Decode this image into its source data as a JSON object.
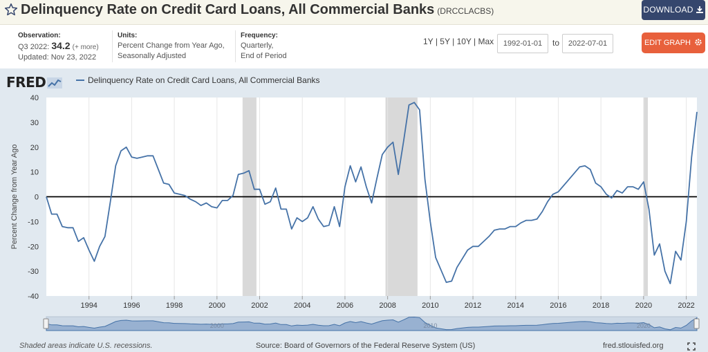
{
  "header": {
    "title": "Delinquency Rate on Credit Card Loans, All Commercial Banks",
    "series_code": "(DRCCLACBS)",
    "download_label": "DOWNLOAD",
    "icon_star": "star-outline-icon",
    "icon_download": "download-icon"
  },
  "meta": {
    "observation_label": "Observation:",
    "observation_period": "Q3 2022:",
    "observation_value": "34.2",
    "observation_more": "(+ more)",
    "updated": "Updated: Nov 23, 2022",
    "units_label": "Units:",
    "units_line1": "Percent Change from Year Ago,",
    "units_line2": "Seasonally Adjusted",
    "frequency_label": "Frequency:",
    "frequency_line1": "Quarterly,",
    "frequency_line2": "End of Period"
  },
  "controls": {
    "range_1y": "1Y",
    "range_5y": "5Y",
    "range_10y": "10Y",
    "range_max": "Max",
    "sep": "|",
    "start_date": "1992-01-01",
    "to_label": "to",
    "end_date": "2022-07-01",
    "edit_label": "EDIT GRAPH",
    "icon_gear": "gear-icon"
  },
  "brand": {
    "logo": "FRED",
    "icon_logo": "fred-chart-icon"
  },
  "footer": {
    "recession_note": "Shaded areas indicate U.S. recessions.",
    "source": "Source: Board of Governors of the Federal Reserve System (US)",
    "site": "fred.stlouisfed.org",
    "icon_fullscreen": "fullscreen-icon"
  },
  "colors": {
    "series": "#4572a7",
    "recession": "#d9d9d9",
    "plot_bg": "#ffffff",
    "chart_bg": "#e1e9f0",
    "download_bg": "#35466d",
    "edit_bg": "#e8603c"
  },
  "chart_data": {
    "type": "line",
    "title": "",
    "ylabel": "Percent Change from Year Ago",
    "xlabel": "",
    "ylim": [
      -40,
      40
    ],
    "xlim": [
      1992.0,
      2022.5
    ],
    "yticks": [
      40,
      30,
      20,
      10,
      0,
      -10,
      -20,
      -30,
      -40
    ],
    "xticks": [
      1994,
      1996,
      1998,
      2000,
      2002,
      2004,
      2006,
      2008,
      2010,
      2012,
      2014,
      2016,
      2018,
      2020,
      2022
    ],
    "zero_line": true,
    "legend": "top-left",
    "grid": "vertical",
    "recessions": [
      [
        2001.2,
        2001.85
      ],
      [
        2007.9,
        2009.4
      ],
      [
        2020.0,
        2020.2
      ]
    ],
    "navigator_labels": [
      "2000",
      "2010",
      "2020"
    ],
    "series": [
      {
        "name": "Delinquency Rate on Credit Card Loans, All Commercial Banks",
        "x": [
          1992.0,
          1992.25,
          1992.5,
          1992.75,
          1993.0,
          1993.25,
          1993.5,
          1993.75,
          1994.0,
          1994.25,
          1994.5,
          1994.75,
          1995.0,
          1995.25,
          1995.5,
          1995.75,
          1996.0,
          1996.25,
          1996.5,
          1996.75,
          1997.0,
          1997.25,
          1997.5,
          1997.75,
          1998.0,
          1998.25,
          1998.5,
          1998.75,
          1999.0,
          1999.25,
          1999.5,
          1999.75,
          2000.0,
          2000.25,
          2000.5,
          2000.75,
          2001.0,
          2001.25,
          2001.5,
          2001.75,
          2002.0,
          2002.25,
          2002.5,
          2002.75,
          2003.0,
          2003.25,
          2003.5,
          2003.75,
          2004.0,
          2004.25,
          2004.5,
          2004.75,
          2005.0,
          2005.25,
          2005.5,
          2005.75,
          2006.0,
          2006.25,
          2006.5,
          2006.75,
          2007.0,
          2007.25,
          2007.5,
          2007.75,
          2008.0,
          2008.25,
          2008.5,
          2008.75,
          2009.0,
          2009.25,
          2009.5,
          2009.75,
          2010.0,
          2010.25,
          2010.5,
          2010.75,
          2011.0,
          2011.25,
          2011.5,
          2011.75,
          2012.0,
          2012.25,
          2012.5,
          2012.75,
          2013.0,
          2013.25,
          2013.5,
          2013.75,
          2014.0,
          2014.25,
          2014.5,
          2014.75,
          2015.0,
          2015.25,
          2015.5,
          2015.75,
          2016.0,
          2016.25,
          2016.5,
          2016.75,
          2017.0,
          2017.25,
          2017.5,
          2017.75,
          2018.0,
          2018.25,
          2018.5,
          2018.75,
          2019.0,
          2019.25,
          2019.5,
          2019.75,
          2020.0,
          2020.25,
          2020.5,
          2020.75,
          2021.0,
          2021.25,
          2021.5,
          2021.75,
          2022.0,
          2022.25,
          2022.5
        ],
        "y": [
          0,
          -7,
          -7,
          -12,
          -12.5,
          -12.5,
          -18,
          -16.5,
          -21.5,
          -26,
          -20,
          -16,
          -2,
          12.5,
          18.5,
          20,
          16,
          15.5,
          16,
          16.5,
          16.5,
          11,
          5.5,
          5,
          1.5,
          1,
          0.5,
          -1,
          -2,
          -3.5,
          -2.5,
          -4,
          -4.5,
          -1.5,
          -1.5,
          0.5,
          9,
          9.5,
          10.5,
          3,
          3,
          -3,
          -2,
          3.5,
          -5,
          -5,
          -13,
          -8.5,
          -10,
          -8.5,
          -4,
          -9,
          -12,
          -11.5,
          -4,
          -12,
          4,
          12.5,
          6,
          12,
          4,
          -2.5,
          7.5,
          17,
          20,
          22,
          9,
          22.5,
          37,
          38,
          35,
          7,
          -10,
          -24.5,
          -29.5,
          -34.5,
          -34,
          -28.5,
          -25,
          -21.5,
          -20,
          -20,
          -18,
          -16,
          -13.5,
          -13,
          -13,
          -12,
          -12,
          -10.5,
          -9.5,
          -9.5,
          -9,
          -6,
          -2,
          1,
          2,
          4.5,
          7,
          9.5,
          12,
          12.5,
          11,
          5.5,
          4,
          1,
          -0.5,
          2.5,
          1.5,
          4,
          4,
          3,
          6,
          -5,
          -23.5,
          -19,
          -30,
          -35,
          -22,
          -25.5,
          -10,
          16,
          34.2
        ]
      }
    ]
  }
}
